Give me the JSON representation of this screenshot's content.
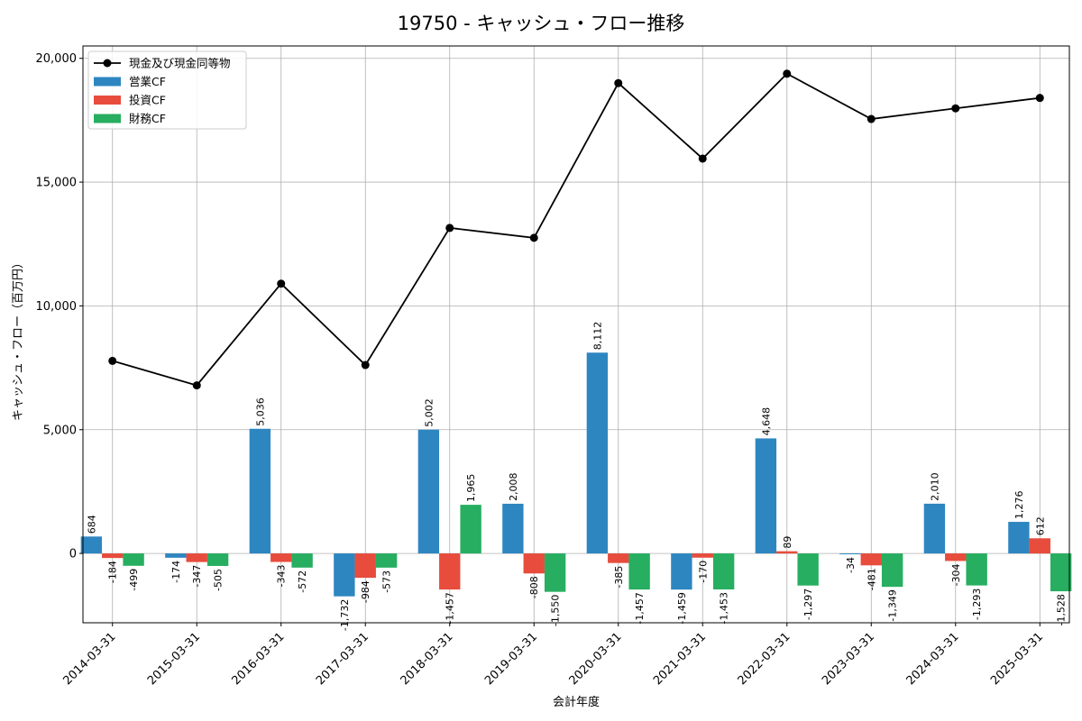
{
  "chart_data": {
    "type": "bar",
    "title": "19750 - キャッシュ・フロー推移",
    "xlabel": "会計年度",
    "ylabel": "キャッシュ・フロー（百万円）",
    "ylim": [
      -2800,
      20500
    ],
    "yticks": [
      0,
      5000,
      10000,
      15000,
      20000
    ],
    "ytick_labels": [
      "0",
      "5,000",
      "10,000",
      "15,000",
      "20,000"
    ],
    "grid": true,
    "legend_position": "top-left",
    "categories": [
      "2014-03-31",
      "2015-03-31",
      "2016-03-31",
      "2017-03-31",
      "2018-03-31",
      "2019-03-31",
      "2020-03-31",
      "2021-03-31",
      "2022-03-31",
      "2023-03-31",
      "2024-03-31",
      "2025-03-31"
    ],
    "series": [
      {
        "name": "営業CF",
        "kind": "bar",
        "color": "#2e86c1",
        "values": [
          684,
          -174,
          5036,
          -1732,
          5002,
          2008,
          8112,
          -1459,
          4648,
          -34,
          2010,
          1276
        ],
        "labels": [
          "684",
          "-174",
          "5,036",
          "-1,732",
          "5,002",
          "2,008",
          "8,112",
          "-1,459",
          "4,648",
          "-34",
          "2,010",
          "1,276"
        ]
      },
      {
        "name": "投資CF",
        "kind": "bar",
        "color": "#e74c3c",
        "values": [
          -184,
          -347,
          -343,
          -984,
          -1457,
          -808,
          -385,
          -170,
          89,
          -481,
          -304,
          612
        ],
        "labels": [
          "-184",
          "-347",
          "-343",
          "-984",
          "-1,457",
          "-808",
          "-385",
          "-170",
          "89",
          "-481",
          "-304",
          "612"
        ]
      },
      {
        "name": "財務CF",
        "kind": "bar",
        "color": "#27ae60",
        "values": [
          -499,
          -505,
          -572,
          -573,
          1965,
          -1550,
          -1457,
          -1453,
          -1297,
          -1349,
          -1293,
          -1528
        ],
        "labels": [
          "-499",
          "-505",
          "-572",
          "-573",
          "1,965",
          "-1,550",
          "-1,457",
          "-1,453",
          "-1,297",
          "-1,349",
          "-1,293",
          "-1,528"
        ]
      },
      {
        "name": "現金及び現金同等物",
        "kind": "line",
        "color": "#000000",
        "values": [
          7780,
          6790,
          10900,
          7610,
          13150,
          12750,
          19000,
          15950,
          19380,
          17550,
          17980,
          18400
        ]
      }
    ]
  }
}
